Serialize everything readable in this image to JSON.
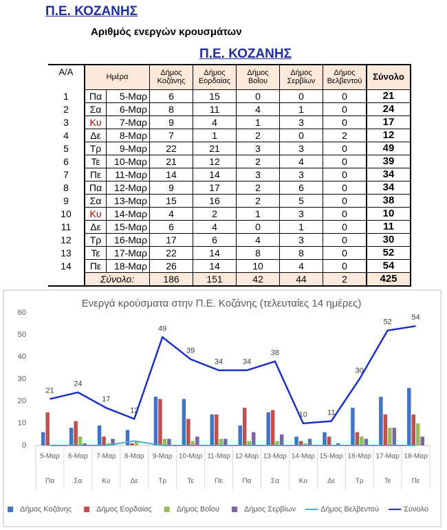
{
  "header": {
    "title": "Π.Ε. ΚΟΖΑΝΗΣ",
    "subtitle": "Αριθμός ενεργών κρουσμάτων"
  },
  "table": {
    "title": "Π.Ε. ΚΟΖΑΝΗΣ",
    "index_header": "Α/Α",
    "columns": [
      "Ημέρα",
      "Δήμος Κοζάνης",
      "Δήμος Εορδαίας",
      "Δήμος Βοΐου",
      "Δήμος Σερβίων",
      "Δήμος Βελβεντού",
      "Σύνολο"
    ],
    "header_color": "#fde9d9",
    "rows": [
      {
        "n": 1,
        "cells": [
          "Πα",
          "5-Μαρ",
          6,
          15,
          0,
          0,
          0,
          21
        ]
      },
      {
        "n": 2,
        "cells": [
          "Σα",
          "6-Μαρ",
          8,
          11,
          4,
          1,
          0,
          24
        ]
      },
      {
        "n": 3,
        "cells": [
          "Κυ",
          "7-Μαρ",
          9,
          4,
          1,
          3,
          0,
          17
        ],
        "day_color": "#c00000"
      },
      {
        "n": 4,
        "cells": [
          "Δε",
          "8-Μαρ",
          7,
          1,
          2,
          0,
          2,
          12
        ]
      },
      {
        "n": 5,
        "cells": [
          "Τρ",
          "9-Μαρ",
          22,
          21,
          3,
          3,
          0,
          49
        ]
      },
      {
        "n": 6,
        "cells": [
          "Τε",
          "10-Μαρ",
          21,
          12,
          2,
          4,
          0,
          39
        ]
      },
      {
        "n": 7,
        "cells": [
          "Πε",
          "11-Μαρ",
          14,
          14,
          3,
          3,
          0,
          34
        ]
      },
      {
        "n": 8,
        "cells": [
          "Πα",
          "12-Μαρ",
          9,
          17,
          2,
          6,
          0,
          34
        ]
      },
      {
        "n": 9,
        "cells": [
          "Σα",
          "13-Μαρ",
          15,
          16,
          2,
          5,
          0,
          38
        ]
      },
      {
        "n": 10,
        "cells": [
          "Κυ",
          "14-Μαρ",
          4,
          2,
          1,
          3,
          0,
          10
        ],
        "day_color": "#c00000"
      },
      {
        "n": 11,
        "cells": [
          "Δε",
          "15-Μαρ",
          6,
          4,
          0,
          1,
          0,
          11
        ]
      },
      {
        "n": 12,
        "cells": [
          "Τρ",
          "16-Μαρ",
          17,
          6,
          4,
          3,
          0,
          30
        ]
      },
      {
        "n": 13,
        "cells": [
          "Τε",
          "17-Μαρ",
          22,
          14,
          8,
          8,
          0,
          52
        ]
      },
      {
        "n": 14,
        "cells": [
          "Πε",
          "18-Μαρ",
          26,
          14,
          10,
          4,
          0,
          54
        ]
      }
    ],
    "totals": {
      "label": "Σύνολο:",
      "cells": [
        186,
        151,
        42,
        44,
        2,
        425
      ]
    }
  },
  "chart_data": {
    "type": "bar",
    "title": "Ενεργά κρούσματα στην Π.Ε. Κοζάνης (τελευταίες 14 ημέρες)",
    "categories": [
      "5-Μαρ",
      "6-Μαρ",
      "7-Μαρ",
      "8-Μαρ",
      "9-Μαρ",
      "10-Μαρ",
      "11-Μαρ",
      "12-Μαρ",
      "13-Μαρ",
      "14-Μαρ",
      "15-Μαρ",
      "16-Μαρ",
      "17-Μαρ",
      "18-Μαρ"
    ],
    "category_groups": [
      "Πα",
      "Σα",
      "Κυ",
      "Δε",
      "Τρ",
      "Τε",
      "Πε",
      "Πα",
      "Σα",
      "Κυ",
      "Δε",
      "Τρ",
      "Τε",
      "Πε"
    ],
    "series": [
      {
        "name": "Δήμος Κοζάνης",
        "type": "bar",
        "color": "#4472c4",
        "values": [
          6,
          8,
          9,
          7,
          22,
          21,
          14,
          9,
          15,
          4,
          6,
          17,
          22,
          26
        ]
      },
      {
        "name": "Δήμος Εορδαίας",
        "type": "bar",
        "color": "#c0504d",
        "values": [
          15,
          11,
          4,
          1,
          21,
          12,
          14,
          17,
          16,
          2,
          4,
          6,
          14,
          14
        ]
      },
      {
        "name": "Δήμος Βοΐου",
        "type": "bar",
        "color": "#9bbb59",
        "values": [
          0,
          4,
          1,
          2,
          3,
          2,
          3,
          2,
          2,
          1,
          0,
          4,
          8,
          10
        ]
      },
      {
        "name": "Δήμος Σερβίων",
        "type": "bar",
        "color": "#8064a2",
        "values": [
          0,
          1,
          3,
          0,
          3,
          4,
          3,
          6,
          5,
          3,
          1,
          3,
          8,
          4
        ]
      },
      {
        "name": "Δήμος Βελβεντού",
        "type": "line",
        "color": "#4bacc6",
        "values": [
          0,
          0,
          0,
          2,
          0,
          0,
          0,
          0,
          0,
          0,
          0,
          0,
          0,
          0
        ]
      },
      {
        "name": "Σύνολο",
        "type": "line",
        "color": "#1a2fc9",
        "show_values": true,
        "values": [
          21,
          24,
          17,
          12,
          49,
          39,
          34,
          34,
          38,
          10,
          11,
          30,
          52,
          54
        ]
      }
    ],
    "ylim": [
      0,
      60
    ],
    "yticks": [
      0,
      10,
      20,
      30,
      40,
      50,
      60
    ],
    "grid": false,
    "legend": "bottom"
  }
}
